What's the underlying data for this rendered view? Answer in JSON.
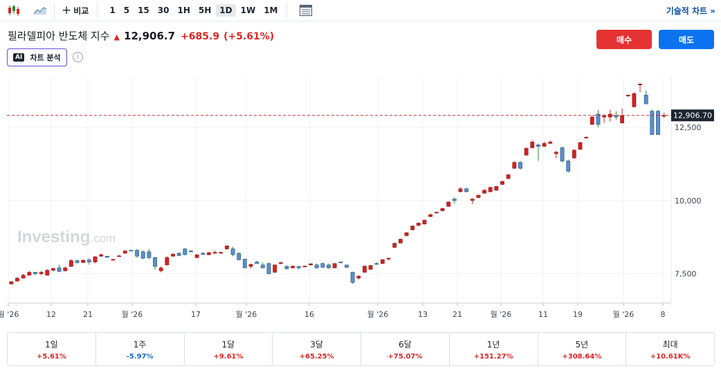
{
  "toolbar": {
    "compare_label": "비교",
    "intervals": [
      "1",
      "5",
      "15",
      "30",
      "1H",
      "5H",
      "1D",
      "1W",
      "1M"
    ],
    "active_interval": "1D",
    "tech_chart_label": "기술적 차트 »"
  },
  "instrument": {
    "name": "필라델피아 반도체 지수",
    "price": "12,906.7",
    "change": "+685.9",
    "change_pct": "(+5.61%)"
  },
  "actions": {
    "buy_label": "매수",
    "sell_label": "매도",
    "ai_badge": "AI",
    "ai_label": "차트 분석"
  },
  "chart_data": {
    "type": "candlestick",
    "watermark": "Investing",
    "watermark_suffix": ".com",
    "y_ticks": [
      "12,500",
      "10,000",
      "7,500"
    ],
    "y_tick_values": [
      12500,
      10000,
      7500
    ],
    "y_range": [
      6450,
      14200
    ],
    "x_ticks": [
      "월 '26",
      "12",
      "21",
      "월 '26",
      "17",
      "월 '26",
      "16",
      "월 '26",
      "13",
      "21",
      "월 '26",
      "11",
      "19",
      "월 '26",
      "8"
    ],
    "current_price_label": "12,906.70",
    "current_price": 12906.7,
    "candles": [
      [
        7150,
        7250,
        7130,
        7230
      ],
      [
        7250,
        7380,
        7230,
        7350
      ],
      [
        7350,
        7500,
        7330,
        7450
      ],
      [
        7450,
        7600,
        7430,
        7550
      ],
      [
        7550,
        7560,
        7450,
        7500
      ],
      [
        7500,
        7600,
        7450,
        7550
      ],
      [
        7450,
        7660,
        7430,
        7620
      ],
      [
        7620,
        7700,
        7580,
        7680
      ],
      [
        7700,
        7810,
        7560,
        7580
      ],
      [
        7600,
        7750,
        7580,
        7700
      ],
      [
        7750,
        8000,
        7730,
        7950
      ],
      [
        7950,
        7970,
        7850,
        7880
      ],
      [
        7880,
        7990,
        7870,
        7960
      ],
      [
        7970,
        8030,
        7810,
        7900
      ],
      [
        7900,
        8100,
        7860,
        8080
      ],
      [
        8100,
        8200,
        8070,
        8150
      ],
      [
        8100,
        8080,
        8050,
        8060
      ],
      [
        7980,
        8010,
        7950,
        7990
      ],
      [
        8100,
        8150,
        8070,
        8110
      ],
      [
        8200,
        8300,
        8180,
        8280
      ],
      [
        8300,
        8280,
        8270,
        8290
      ],
      [
        8300,
        8350,
        8050,
        8100
      ],
      [
        8250,
        8300,
        8000,
        8030
      ],
      [
        8250,
        8340,
        8000,
        8050
      ],
      [
        8050,
        8080,
        7640,
        7750
      ],
      [
        7600,
        7750,
        7550,
        7700
      ],
      [
        7800,
        8100,
        7780,
        8050
      ],
      [
        8100,
        8200,
        8080,
        8170
      ],
      [
        8200,
        8230,
        8100,
        8120
      ],
      [
        8350,
        8370,
        8130,
        8150
      ],
      [
        8280,
        8300,
        8230,
        8250
      ],
      [
        8050,
        8150,
        8030,
        8150
      ],
      [
        8200,
        8230,
        8150,
        8160
      ],
      [
        8150,
        8250,
        8130,
        8220
      ],
      [
        8200,
        8300,
        8180,
        8230
      ],
      [
        8200,
        8250,
        8180,
        8230
      ],
      [
        8350,
        8480,
        8320,
        8450
      ],
      [
        8350,
        8420,
        8100,
        8150
      ],
      [
        8200,
        8230,
        7950,
        7980
      ],
      [
        8000,
        7950,
        7700,
        7700
      ],
      [
        7750,
        7840,
        7680,
        7820
      ],
      [
        7900,
        7940,
        7840,
        7850
      ],
      [
        7800,
        7880,
        7750,
        7700
      ],
      [
        7850,
        7880,
        7480,
        7500
      ],
      [
        7550,
        7820,
        7530,
        7800
      ],
      [
        7850,
        7900,
        7820,
        7880
      ],
      [
        7750,
        7790,
        7650,
        7670
      ],
      [
        7700,
        7780,
        7680,
        7760
      ],
      [
        7750,
        7770,
        7650,
        7700
      ],
      [
        7750,
        7780,
        7720,
        7760
      ],
      [
        7800,
        7850,
        7780,
        7840
      ],
      [
        7800,
        7850,
        7680,
        7700
      ],
      [
        7850,
        7880,
        7700,
        7720
      ],
      [
        7800,
        7850,
        7680,
        7700
      ],
      [
        7700,
        7860,
        7690,
        7850
      ],
      [
        7900,
        7920,
        7860,
        7880
      ],
      [
        7800,
        7800,
        7700,
        7720
      ],
      [
        7550,
        7570,
        7150,
        7200
      ],
      [
        7350,
        7440,
        7300,
        7420
      ],
      [
        7550,
        7780,
        7530,
        7760
      ],
      [
        7650,
        7800,
        7630,
        7780
      ],
      [
        7850,
        7900,
        7800,
        7830
      ],
      [
        7850,
        7990,
        7830,
        7980
      ],
      [
        8000,
        8050,
        7960,
        8030
      ],
      [
        8400,
        8560,
        8380,
        8540
      ],
      [
        8550,
        8700,
        8530,
        8680
      ],
      [
        8800,
        8920,
        8780,
        8900
      ],
      [
        9000,
        9150,
        8980,
        9130
      ],
      [
        9150,
        9250,
        9130,
        9230
      ],
      [
        9200,
        9350,
        9180,
        9330
      ],
      [
        9450,
        9550,
        9430,
        9520
      ],
      [
        9600,
        9620,
        9560,
        9600
      ],
      [
        9650,
        9750,
        9630,
        9730
      ],
      [
        9800,
        9970,
        9780,
        9950
      ],
      [
        10050,
        10100,
        9900,
        10000
      ],
      [
        10300,
        10450,
        10280,
        10400
      ],
      [
        10400,
        10450,
        10280,
        10300
      ],
      [
        10000,
        10080,
        9880,
        10050
      ],
      [
        10100,
        10200,
        10080,
        10180
      ],
      [
        10250,
        10400,
        10230,
        10350
      ],
      [
        10300,
        10460,
        10280,
        10450
      ],
      [
        10350,
        10500,
        10330,
        10480
      ],
      [
        10550,
        10680,
        10530,
        10650
      ],
      [
        10750,
        10900,
        10730,
        10880
      ],
      [
        11100,
        11350,
        11080,
        11300
      ],
      [
        11300,
        11350,
        11050,
        11100
      ],
      [
        11550,
        11820,
        11530,
        11780
      ],
      [
        11800,
        12050,
        11780,
        12000
      ],
      [
        11900,
        11950,
        11350,
        11850
      ],
      [
        11850,
        12000,
        11830,
        11950
      ],
      [
        11950,
        12050,
        11930,
        12000
      ],
      [
        11600,
        11700,
        11450,
        11650
      ],
      [
        11800,
        11850,
        11300,
        11350
      ],
      [
        11350,
        11400,
        10950,
        11000
      ],
      [
        11450,
        11750,
        11430,
        11720
      ],
      [
        11750,
        12000,
        11730,
        11980
      ],
      [
        12150,
        12200,
        12140,
        12160
      ],
      [
        12600,
        12900,
        12580,
        12850
      ],
      [
        12950,
        13100,
        12500,
        12600
      ],
      [
        12850,
        12950,
        12650,
        12900
      ],
      [
        12850,
        13100,
        12700,
        12950
      ],
      [
        12900,
        13050,
        12750,
        12850
      ],
      [
        12650,
        13150,
        12620,
        12900
      ],
      [
        13600,
        13620,
        13530,
        13600
      ],
      [
        13200,
        13700,
        13180,
        13650
      ],
      [
        13950,
        14000,
        13700,
        13980
      ],
      [
        13600,
        13750,
        13300,
        13300
      ],
      [
        13050,
        13100,
        12250,
        12250
      ],
      [
        13050,
        13100,
        12250,
        12250
      ],
      [
        12900,
        13000,
        12820,
        12906
      ]
    ]
  },
  "performance": [
    {
      "label": "1일",
      "value": "+5.61%",
      "dir": "pos"
    },
    {
      "label": "1주",
      "value": "-5.97%",
      "dir": "neg"
    },
    {
      "label": "1달",
      "value": "+9.61%",
      "dir": "pos"
    },
    {
      "label": "3달",
      "value": "+65.25%",
      "dir": "pos"
    },
    {
      "label": "6달",
      "value": "+75.07%",
      "dir": "pos"
    },
    {
      "label": "1년",
      "value": "+151.27%",
      "dir": "pos"
    },
    {
      "label": "5년",
      "value": "+308.64%",
      "dir": "pos"
    },
    {
      "label": "최대",
      "value": "+10.61K%",
      "dir": "pos"
    }
  ]
}
